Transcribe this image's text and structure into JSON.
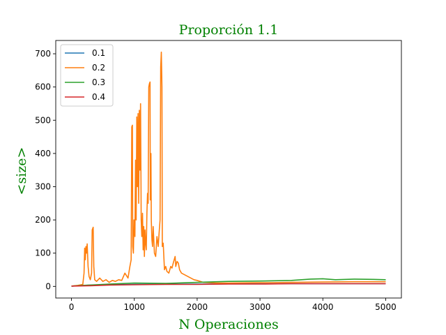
{
  "chart_data": {
    "type": "line",
    "title": "Proporción 1.1",
    "xlabel": "N Operaciones",
    "ylabel": "<size>",
    "label_color": "#008000",
    "xlim": [
      -250,
      5250
    ],
    "ylim": [
      -35,
      740
    ],
    "xticks": [
      0,
      1000,
      2000,
      3000,
      4000,
      5000
    ],
    "yticks": [
      0,
      100,
      200,
      300,
      400,
      500,
      600,
      700
    ],
    "xtick_labels": [
      "0",
      "1000",
      "2000",
      "3000",
      "4000",
      "5000"
    ],
    "ytick_labels": [
      "0",
      "100",
      "200",
      "300",
      "400",
      "500",
      "600",
      "700"
    ],
    "grid": false,
    "legend": {
      "location": "top-left"
    },
    "series": [
      {
        "name": "0.1",
        "color": "#1f77b4",
        "points": [
          [
            0,
            1
          ],
          [
            200,
            3
          ],
          [
            500,
            5
          ],
          [
            1000,
            6
          ],
          [
            2000,
            7
          ],
          [
            3000,
            8
          ],
          [
            4000,
            8
          ],
          [
            5000,
            8
          ]
        ]
      },
      {
        "name": "0.2",
        "color": "#ff7f0e",
        "points": [
          [
            0,
            1
          ],
          [
            100,
            3
          ],
          [
            180,
            6
          ],
          [
            200,
            40
          ],
          [
            210,
            115
          ],
          [
            220,
            80
          ],
          [
            230,
            120
          ],
          [
            240,
            100
          ],
          [
            250,
            128
          ],
          [
            265,
            60
          ],
          [
            280,
            30
          ],
          [
            300,
            20
          ],
          [
            320,
            40
          ],
          [
            330,
            170
          ],
          [
            345,
            178
          ],
          [
            355,
            60
          ],
          [
            370,
            20
          ],
          [
            400,
            15
          ],
          [
            450,
            25
          ],
          [
            500,
            15
          ],
          [
            550,
            20
          ],
          [
            600,
            12
          ],
          [
            650,
            18
          ],
          [
            700,
            15
          ],
          [
            750,
            20
          ],
          [
            800,
            18
          ],
          [
            850,
            40
          ],
          [
            900,
            25
          ],
          [
            930,
            60
          ],
          [
            950,
            80
          ],
          [
            960,
            480
          ],
          [
            970,
            485
          ],
          [
            975,
            120
          ],
          [
            985,
            100
          ],
          [
            995,
            200
          ],
          [
            1010,
            150
          ],
          [
            1020,
            380
          ],
          [
            1030,
            200
          ],
          [
            1040,
            510
          ],
          [
            1050,
            300
          ],
          [
            1060,
            520
          ],
          [
            1070,
            250
          ],
          [
            1080,
            530
          ],
          [
            1090,
            350
          ],
          [
            1100,
            550
          ],
          [
            1110,
            200
          ],
          [
            1120,
            150
          ],
          [
            1130,
            220
          ],
          [
            1140,
            110
          ],
          [
            1150,
            180
          ],
          [
            1160,
            90
          ],
          [
            1170,
            170
          ],
          [
            1180,
            130
          ],
          [
            1190,
            110
          ],
          [
            1200,
            220
          ],
          [
            1210,
            280
          ],
          [
            1220,
            250
          ],
          [
            1230,
            600
          ],
          [
            1240,
            610
          ],
          [
            1250,
            615
          ],
          [
            1255,
            260
          ],
          [
            1265,
            400
          ],
          [
            1270,
            200
          ],
          [
            1280,
            140
          ],
          [
            1290,
            120
          ],
          [
            1300,
            180
          ],
          [
            1320,
            100
          ],
          [
            1340,
            90
          ],
          [
            1360,
            150
          ],
          [
            1380,
            120
          ],
          [
            1395,
            160
          ],
          [
            1410,
            200
          ],
          [
            1420,
            660
          ],
          [
            1430,
            705
          ],
          [
            1440,
            600
          ],
          [
            1445,
            120
          ],
          [
            1460,
            130
          ],
          [
            1480,
            50
          ],
          [
            1500,
            60
          ],
          [
            1520,
            45
          ],
          [
            1550,
            40
          ],
          [
            1580,
            60
          ],
          [
            1600,
            55
          ],
          [
            1620,
            70
          ],
          [
            1650,
            90
          ],
          [
            1660,
            60
          ],
          [
            1680,
            75
          ],
          [
            1700,
            70
          ],
          [
            1720,
            50
          ],
          [
            1750,
            40
          ],
          [
            1800,
            35
          ],
          [
            1850,
            30
          ],
          [
            1900,
            25
          ],
          [
            1950,
            20
          ],
          [
            2000,
            18
          ],
          [
            2100,
            12
          ],
          [
            2300,
            10
          ],
          [
            2500,
            10
          ],
          [
            3000,
            11
          ],
          [
            3500,
            12
          ],
          [
            4000,
            13
          ],
          [
            4500,
            14
          ],
          [
            5000,
            14
          ]
        ]
      },
      {
        "name": "0.3",
        "color": "#2ca02c",
        "points": [
          [
            0,
            1
          ],
          [
            300,
            4
          ],
          [
            600,
            7
          ],
          [
            1000,
            10
          ],
          [
            1500,
            9
          ],
          [
            2000,
            12
          ],
          [
            2500,
            15
          ],
          [
            3000,
            16
          ],
          [
            3500,
            18
          ],
          [
            3800,
            22
          ],
          [
            4000,
            23
          ],
          [
            4200,
            20
          ],
          [
            4500,
            22
          ],
          [
            4800,
            21
          ],
          [
            5000,
            20
          ]
        ]
      },
      {
        "name": "0.4",
        "color": "#d62728",
        "points": [
          [
            0,
            1
          ],
          [
            300,
            2
          ],
          [
            600,
            4
          ],
          [
            1000,
            5
          ],
          [
            1500,
            6
          ],
          [
            2000,
            6
          ],
          [
            2500,
            7
          ],
          [
            3000,
            7
          ],
          [
            3500,
            8
          ],
          [
            4000,
            8
          ],
          [
            4500,
            8
          ],
          [
            5000,
            8
          ]
        ]
      }
    ]
  }
}
